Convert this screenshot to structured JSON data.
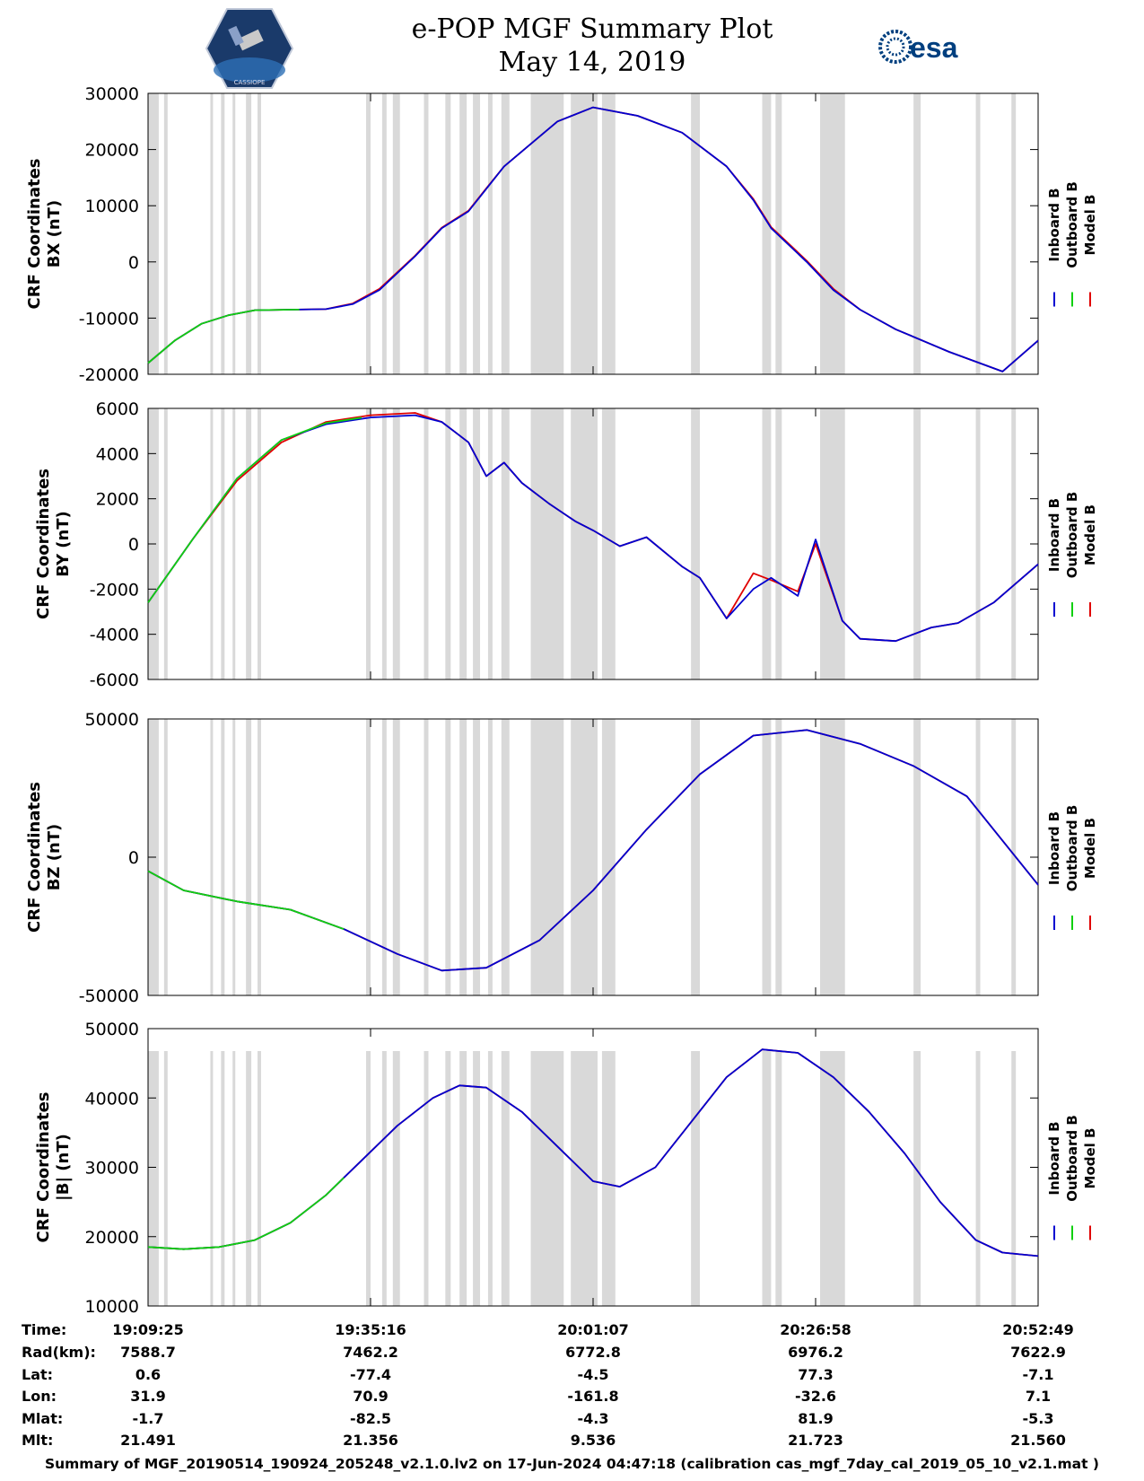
{
  "page": {
    "title_line1": "e-POP MGF Summary Plot",
    "title_line2": "May 14, 2019",
    "left_logo_text": "CASSIOPE",
    "right_logo_text": "esa",
    "footer": "Summary of MGF_20190514_190924_205248_v2.1.0.lv2 on 17-Jun-2024 04:47:18 (calibration cas_mgf_7day_cal_2019_05_10_v2.1.mat )"
  },
  "colors": {
    "inboard": "#0000d0",
    "outboard": "#10d010",
    "model": "#e00000",
    "gap": "#d9d9d9"
  },
  "chart_data": [
    {
      "type": "line",
      "name": "BX",
      "ylabel_line1": "CRF Coordinates",
      "ylabel_line2": "BX (nT)",
      "ylim": [
        -20000,
        30000
      ],
      "yticks": [
        -20000,
        -10000,
        0,
        10000,
        20000,
        30000
      ],
      "ytick_labels": [
        "-20000",
        "-10000",
        "0",
        "10000",
        "20000",
        "30000"
      ],
      "legend": [
        "Inboard B",
        "Outboard B",
        "Model B"
      ],
      "x_minutes": [
        0,
        3,
        6,
        9,
        12,
        16,
        20,
        23,
        26,
        30,
        33,
        36,
        38,
        40,
        43,
        46,
        50,
        55,
        60,
        65,
        68,
        70,
        74,
        77,
        80,
        84,
        90,
        96,
        100
      ],
      "series": [
        {
          "name": "Inboard B",
          "values": [
            -18000,
            -14000,
            -11000,
            -9500,
            -8600,
            -8500,
            -8400,
            -7500,
            -5000,
            1000,
            6000,
            9000,
            13000,
            17000,
            21000,
            25000,
            27500,
            26000,
            23000,
            17000,
            11000,
            6000,
            0,
            -5000,
            -8500,
            -12000,
            -16000,
            -19500,
            -14000
          ]
        },
        {
          "name": "Outboard B",
          "values": [
            -18000,
            -14000,
            -11000,
            -9500,
            -8600,
            -8500,
            -8400,
            -7400,
            -4800,
            1100,
            6100,
            9100,
            13100,
            17000,
            21000,
            25000,
            27500,
            26000,
            23000,
            17000,
            11000,
            6000,
            0,
            -5000,
            -8500,
            -12000,
            -16000,
            -19500,
            -14000
          ]
        },
        {
          "name": "Model B",
          "values": [
            -18000,
            -14000,
            -11000,
            -9500,
            -8600,
            -8500,
            -8400,
            -7400,
            -4800,
            1100,
            6100,
            9100,
            13100,
            17000,
            21000,
            25000,
            27500,
            26000,
            23000,
            17000,
            11200,
            6200,
            200,
            -4800,
            -8500,
            -12000,
            -16000,
            -19500,
            -14000
          ]
        }
      ]
    },
    {
      "type": "line",
      "name": "BY",
      "ylabel_line1": "CRF Coordinates",
      "ylabel_line2": "BY (nT)",
      "ylim": [
        -6000,
        6000
      ],
      "yticks": [
        -6000,
        -4000,
        -2000,
        0,
        2000,
        4000,
        6000
      ],
      "ytick_labels": [
        "-6000",
        "-4000",
        "-2000",
        "0",
        "2000",
        "4000",
        "6000"
      ],
      "legend": [
        "Inboard B",
        "Outboard B",
        "Model B"
      ],
      "x_minutes": [
        0,
        5,
        10,
        15,
        20,
        25,
        30,
        33,
        36,
        38,
        40,
        42,
        45,
        48,
        50,
        53,
        56,
        60,
        62,
        65,
        68,
        70,
        73,
        75,
        78,
        80,
        84,
        88,
        91,
        95,
        100
      ],
      "series": [
        {
          "name": "Inboard B",
          "values": [
            -2600,
            200,
            2900,
            4600,
            5300,
            5600,
            5700,
            5400,
            4500,
            3000,
            3600,
            2700,
            1800,
            1000,
            600,
            -100,
            300,
            -1000,
            -1500,
            -3300,
            -2000,
            -1500,
            -2300,
            200,
            -3400,
            -4200,
            -4300,
            -3700,
            -3500,
            -2600,
            -900
          ]
        },
        {
          "name": "Outboard B",
          "values": [
            -2600,
            200,
            2900,
            4600,
            5350,
            5650,
            5750,
            5400,
            4500,
            3000,
            3600,
            2700,
            1800,
            1000,
            600,
            -100,
            300,
            -1000,
            -1500,
            -3300,
            -2000,
            -1500,
            -2300,
            200,
            -3400,
            -4200,
            -4300,
            -3700,
            -3500,
            -2600,
            -900
          ]
        },
        {
          "name": "Model B",
          "values": [
            -2600,
            200,
            2800,
            4500,
            5400,
            5700,
            5800,
            5400,
            4500,
            3000,
            3600,
            2700,
            1800,
            1000,
            600,
            -100,
            300,
            -1000,
            -1500,
            -3300,
            -1300,
            -1600,
            -2100,
            0,
            -3400,
            -4200,
            -4300,
            -3700,
            -3500,
            -2600,
            -900
          ]
        }
      ]
    },
    {
      "type": "line",
      "name": "BZ",
      "ylabel_line1": "CRF Coordinates",
      "ylabel_line2": "BZ (nT)",
      "ylim": [
        -50000,
        50000
      ],
      "yticks": [
        -50000,
        0,
        50000
      ],
      "ytick_labels": [
        "-50000",
        "0",
        "50000"
      ],
      "legend": [
        "Inboard B",
        "Outboard B",
        "Model B"
      ],
      "x_minutes": [
        0,
        4,
        10,
        16,
        22,
        28,
        33,
        38,
        44,
        50,
        56,
        62,
        68,
        74,
        80,
        86,
        92,
        100
      ],
      "series": [
        {
          "name": "Inboard B",
          "values": [
            -5000,
            -12000,
            -16000,
            -19000,
            -26000,
            -35000,
            -41000,
            -40000,
            -30000,
            -12000,
            10000,
            30000,
            44000,
            46000,
            41000,
            33000,
            22000,
            -10000
          ]
        },
        {
          "name": "Outboard B",
          "values": [
            -5000,
            -12000,
            -16000,
            -19000,
            -26000,
            -35000,
            -41000,
            -40000,
            -30000,
            -12000,
            10000,
            30000,
            44000,
            46000,
            41000,
            33000,
            22000,
            -10000
          ]
        },
        {
          "name": "Model B",
          "values": [
            -5000,
            -12000,
            -16000,
            -19000,
            -26000,
            -35000,
            -41000,
            -40000,
            -30000,
            -12000,
            10000,
            30000,
            44000,
            46000,
            41000,
            33000,
            22000,
            -10000
          ]
        }
      ]
    },
    {
      "type": "line",
      "name": "|B|",
      "ylabel_line1": "CRF Coordinates",
      "ylabel_line2": "|B| (nT)",
      "ylim": [
        10000,
        50000
      ],
      "yticks": [
        10000,
        20000,
        30000,
        40000,
        50000
      ],
      "ytick_labels": [
        "10000",
        "20000",
        "30000",
        "40000",
        "50000"
      ],
      "legend": [
        "Inboard B",
        "Outboard B",
        "Model B"
      ],
      "x_minutes": [
        0,
        4,
        8,
        12,
        16,
        20,
        24,
        28,
        32,
        35,
        38,
        42,
        46,
        50,
        53,
        57,
        61,
        65,
        69,
        73,
        77,
        81,
        85,
        89,
        93,
        96,
        100
      ],
      "series": [
        {
          "name": "Inboard B",
          "values": [
            18500,
            18200,
            18500,
            19500,
            22000,
            26000,
            31000,
            36000,
            40000,
            41800,
            41500,
            38000,
            33000,
            28000,
            27200,
            30000,
            36500,
            43000,
            47000,
            46500,
            43000,
            38000,
            32000,
            25000,
            19500,
            17700,
            17200
          ]
        },
        {
          "name": "Outboard B",
          "values": [
            18500,
            18200,
            18500,
            19500,
            22000,
            26000,
            31000,
            36000,
            40000,
            41800,
            41500,
            38000,
            33000,
            28000,
            27200,
            30000,
            36500,
            43000,
            47000,
            46500,
            43000,
            38000,
            32000,
            25000,
            19500,
            17700,
            17200
          ]
        },
        {
          "name": "Model B",
          "values": [
            18500,
            18200,
            18500,
            19500,
            22000,
            26000,
            31000,
            36000,
            40000,
            41800,
            41500,
            38000,
            33000,
            28000,
            27200,
            30000,
            36500,
            43000,
            47000,
            46500,
            43000,
            38000,
            32000,
            25000,
            19500,
            17700,
            17200
          ]
        }
      ]
    }
  ],
  "outboard_end_minute": [
    17,
    24,
    22,
    22
  ],
  "gaps_minutes": [
    [
      0,
      1.2
    ],
    [
      1.8,
      2.2
    ],
    [
      7,
      7.3
    ],
    [
      8.2,
      8.6
    ],
    [
      9.5,
      9.8
    ],
    [
      11,
      11.6
    ],
    [
      12.3,
      12.7
    ],
    [
      24.5,
      25
    ],
    [
      26.3,
      26.8
    ],
    [
      27.5,
      28.3
    ],
    [
      31,
      31.5
    ],
    [
      33.4,
      34
    ],
    [
      35,
      35.8
    ],
    [
      36.5,
      37.3
    ],
    [
      38.2,
      38.7
    ],
    [
      39.7,
      40.6
    ],
    [
      43,
      46.7
    ],
    [
      47.5,
      50.5
    ],
    [
      51,
      52.5
    ],
    [
      61,
      62
    ],
    [
      69,
      70
    ],
    [
      70.5,
      71.2
    ],
    [
      75.5,
      78.3
    ],
    [
      86,
      86.8
    ],
    [
      93,
      93.5
    ],
    [
      97,
      97.5
    ]
  ],
  "time_table": {
    "row_labels": [
      "Time:",
      "Rad(km):",
      "Lat:",
      "Lon:",
      "Mlat:",
      "Mlt:"
    ],
    "columns": [
      [
        "19:09:25",
        "7588.7",
        "0.6",
        "31.9",
        "-1.7",
        "21.491"
      ],
      [
        "19:35:16",
        "7462.2",
        "-77.4",
        "70.9",
        "-82.5",
        "21.356"
      ],
      [
        "20:01:07",
        "6772.8",
        "-4.5",
        "-161.8",
        "-4.3",
        "9.536"
      ],
      [
        "20:26:58",
        "6976.2",
        "77.3",
        "-32.6",
        "81.9",
        "21.723"
      ],
      [
        "20:52:49",
        "7622.9",
        "-7.1",
        "7.1",
        "-5.3",
        "21.560"
      ]
    ]
  }
}
